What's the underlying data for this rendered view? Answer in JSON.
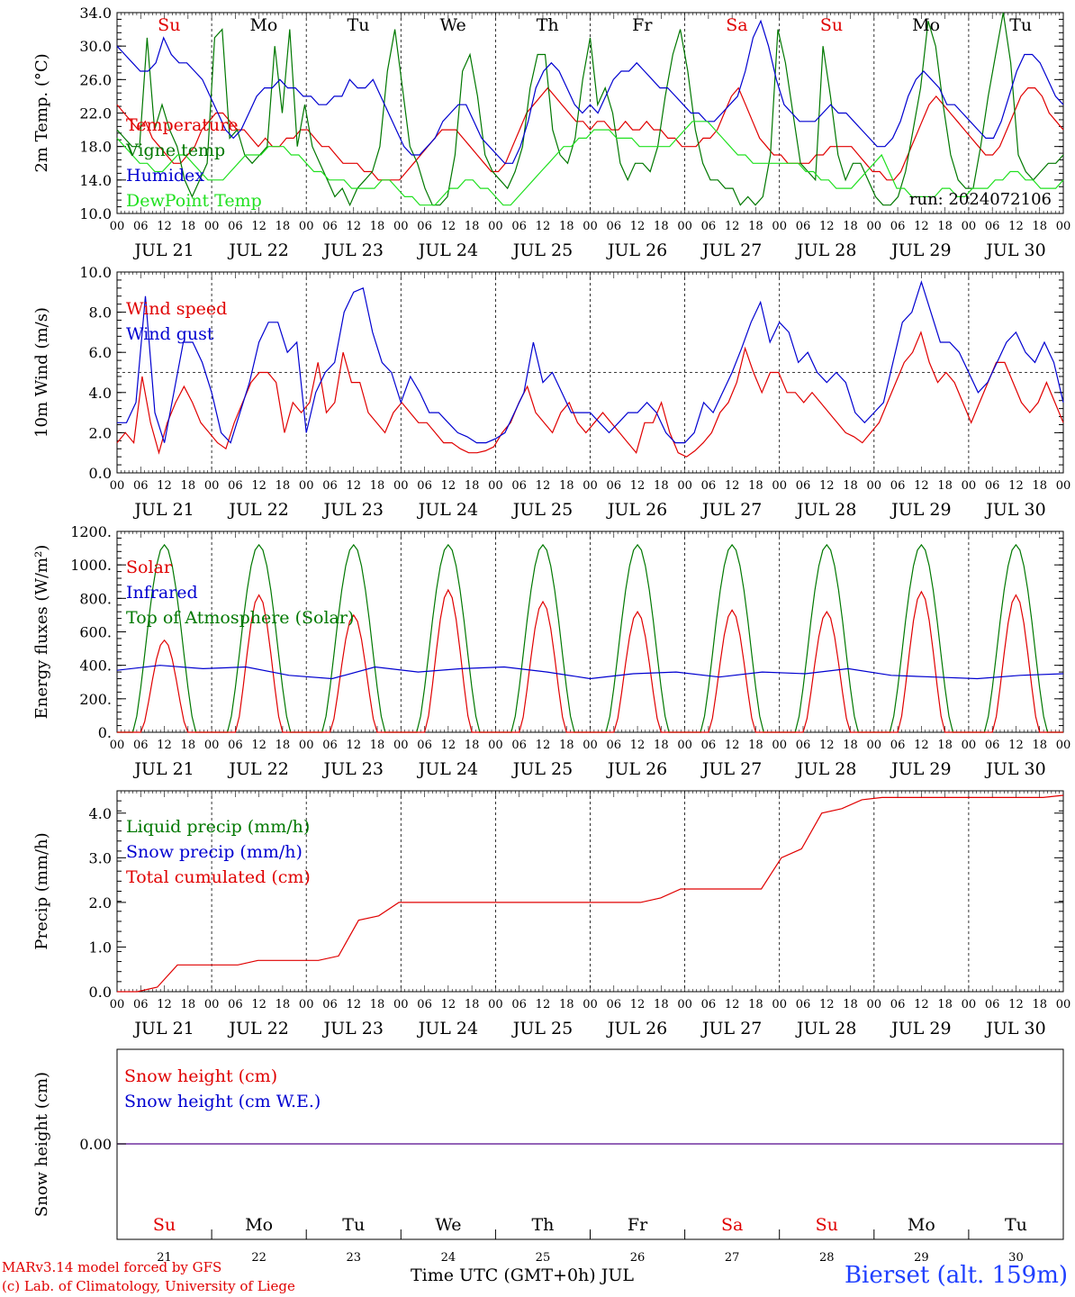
{
  "chart_data": [
    {
      "panel": "temperature",
      "type": "line",
      "ylabel": "2m Temp. (°C)",
      "ylim": [
        10,
        34
      ],
      "yticks": [
        "10.0",
        "14.0",
        "18.0",
        "22.0",
        "26.0",
        "30.0",
        "34.0"
      ],
      "annotation": "run: 2024072106",
      "x_unit": "hours from 2024-07-21 00 UTC (3-hourly)",
      "series": [
        {
          "name": "Temperature",
          "color": "#e00000",
          "values": [
            23,
            22,
            21,
            20,
            21,
            19,
            18,
            17,
            16,
            16,
            17,
            18,
            20,
            21,
            22,
            22,
            21,
            20,
            20,
            19,
            18,
            19,
            18,
            18,
            19,
            19,
            20,
            20,
            19,
            18,
            18,
            17,
            16,
            16,
            16,
            15,
            15,
            14,
            14,
            14,
            14,
            15,
            16,
            17,
            18,
            19,
            20,
            20,
            20,
            19,
            18,
            17,
            16,
            15,
            15,
            16,
            18,
            20,
            22,
            23,
            24,
            25,
            24,
            23,
            22,
            21,
            21,
            20,
            21,
            21,
            20,
            20,
            21,
            20,
            20,
            21,
            20,
            20,
            19,
            19,
            18,
            18,
            18,
            19,
            19,
            20,
            22,
            24,
            25,
            23,
            21,
            19,
            18,
            17,
            17,
            16,
            16,
            16,
            16,
            17,
            17,
            18,
            18,
            18,
            18,
            17,
            16,
            15,
            15,
            14,
            14,
            15,
            17,
            19,
            21,
            23,
            24,
            23,
            22,
            21,
            20,
            19,
            18,
            17,
            17,
            18,
            20,
            22,
            24,
            25,
            25,
            24,
            22,
            21,
            20
          ]
        },
        {
          "name": "Vigne temp",
          "color": "#007800",
          "values": [
            20,
            19,
            18,
            18,
            31,
            20,
            23,
            20,
            18,
            14,
            12,
            14,
            16,
            31,
            32,
            19,
            20,
            17,
            16,
            17,
            18,
            30,
            22,
            32,
            18,
            23,
            18,
            16,
            14,
            12,
            13,
            11,
            13,
            14,
            15,
            18,
            27,
            32,
            25,
            18,
            16,
            13,
            11,
            11,
            12,
            17,
            27,
            29,
            24,
            17,
            15,
            14,
            13,
            15,
            18,
            25,
            29,
            29,
            20,
            17,
            16,
            19,
            26,
            31,
            23,
            25,
            22,
            16,
            14,
            16,
            16,
            15,
            18,
            24,
            29,
            32,
            27,
            20,
            16,
            14,
            14,
            13,
            13,
            11,
            12,
            11,
            12,
            17,
            32,
            28,
            22,
            16,
            15,
            14,
            30,
            24,
            17,
            14,
            16,
            16,
            14,
            12,
            11,
            11,
            12,
            15,
            20,
            25,
            33,
            30,
            23,
            17,
            14,
            13,
            13,
            18,
            24,
            29,
            34,
            28,
            17,
            15,
            14,
            15,
            16,
            16,
            17
          ]
        },
        {
          "name": "Humidex",
          "color": "#0000d0",
          "values": [
            30,
            29,
            28,
            27,
            27,
            28,
            31,
            29,
            28,
            28,
            27,
            26,
            24,
            22,
            20,
            19,
            20,
            22,
            24,
            25,
            25,
            26,
            25,
            25,
            24,
            24,
            23,
            23,
            24,
            24,
            26,
            25,
            25,
            26,
            24,
            22,
            20,
            18,
            17,
            17,
            18,
            19,
            21,
            22,
            23,
            23,
            21,
            19,
            18,
            17,
            16,
            16,
            18,
            21,
            25,
            27,
            28,
            27,
            25,
            23,
            22,
            23,
            22,
            24,
            26,
            27,
            27,
            28,
            27,
            26,
            25,
            25,
            24,
            23,
            22,
            22,
            21,
            21,
            22,
            23,
            24,
            27,
            31,
            33,
            30,
            26,
            23,
            22,
            21,
            21,
            21,
            22,
            23,
            22,
            22,
            21,
            20,
            19,
            18,
            18,
            19,
            21,
            24,
            26,
            27,
            26,
            25,
            23,
            23,
            22,
            21,
            20,
            19,
            19,
            21,
            24,
            27,
            29,
            29,
            28,
            26,
            24,
            23
          ]
        },
        {
          "name": "DewPoint Temp",
          "color": "#20e020",
          "values": [
            19,
            18,
            17,
            16,
            16,
            15,
            15,
            16,
            17,
            17,
            16,
            15,
            14,
            14,
            14,
            15,
            16,
            17,
            17,
            17,
            18,
            18,
            18,
            17,
            17,
            16,
            15,
            15,
            14,
            14,
            14,
            13,
            13,
            13,
            13,
            14,
            14,
            13,
            12,
            12,
            11,
            11,
            11,
            12,
            13,
            13,
            14,
            14,
            13,
            13,
            12,
            11,
            11,
            12,
            13,
            14,
            15,
            16,
            17,
            18,
            18,
            19,
            19,
            20,
            20,
            20,
            19,
            19,
            19,
            18,
            18,
            18,
            18,
            18,
            19,
            20,
            21,
            21,
            21,
            20,
            19,
            18,
            17,
            17,
            16,
            16,
            16,
            16,
            16,
            16,
            16,
            15,
            15,
            14,
            14,
            13,
            13,
            13,
            14,
            15,
            16,
            17,
            15,
            13,
            13,
            12,
            12,
            12,
            12,
            13,
            13,
            12,
            12,
            13,
            13,
            13,
            14,
            14,
            15,
            15,
            14,
            14,
            13,
            13,
            13,
            14
          ]
        }
      ]
    },
    {
      "panel": "wind",
      "type": "line",
      "ylabel": "10m Wind (m/s)",
      "ylim": [
        0,
        10
      ],
      "yticks": [
        "0.0",
        "2.0",
        "4.0",
        "6.0",
        "8.0",
        "10.0"
      ],
      "reference_line": 5,
      "series": [
        {
          "name": "Wind speed",
          "color": "#e00000",
          "values": [
            1.5,
            2,
            1.5,
            4.8,
            2.5,
            1,
            2.5,
            3.5,
            4.3,
            3.5,
            2.5,
            2,
            1.5,
            1.2,
            2.5,
            3.5,
            4.5,
            5,
            5,
            4.5,
            2,
            3.5,
            3,
            3.5,
            5.5,
            3,
            3.5,
            6,
            4.5,
            4.5,
            3,
            2.5,
            2,
            3,
            3.5,
            3,
            2.5,
            2.5,
            2,
            1.5,
            1.5,
            1.2,
            1,
            1,
            1.1,
            1.3,
            2,
            2.5,
            3.5,
            4.3,
            3,
            2.5,
            2,
            3,
            3.5,
            2.5,
            2,
            2.5,
            3,
            2.5,
            2,
            1.5,
            1,
            2.5,
            2.5,
            3.5,
            2,
            1,
            0.8,
            1.1,
            1.5,
            2,
            3,
            3.5,
            4.5,
            6.2,
            5,
            4,
            5,
            5,
            4,
            4,
            3.5,
            4,
            3.5,
            3,
            2.5,
            2,
            1.8,
            1.5,
            2,
            2.5,
            3.5,
            4.5,
            5.5,
            6,
            7,
            5.5,
            4.5,
            5,
            4.5,
            3.5,
            2.5,
            3.5,
            4.5,
            5.5,
            5.5,
            4.5,
            3.5,
            3,
            3.5,
            4.5,
            3.5,
            2.5
          ]
        },
        {
          "name": "Wind gust",
          "color": "#0000d0",
          "values": [
            2.5,
            2.5,
            3.5,
            8.8,
            3,
            1.5,
            4,
            6.5,
            6.5,
            5.5,
            4,
            2,
            1.5,
            3,
            4.5,
            6.5,
            7.5,
            7.5,
            6,
            6.5,
            2,
            4,
            5,
            5.5,
            8,
            9,
            9.2,
            7,
            5.5,
            5,
            3.5,
            4.8,
            4,
            3,
            3,
            2.5,
            2,
            1.8,
            1.5,
            1.5,
            1.7,
            2,
            3,
            4,
            6.5,
            4.5,
            5,
            4,
            3,
            3,
            3,
            2.5,
            2,
            2.5,
            3,
            3,
            3.5,
            3,
            2,
            1.5,
            1.5,
            2,
            3.5,
            3,
            4,
            5,
            6.2,
            7.5,
            8.5,
            6.5,
            7.5,
            7,
            5.5,
            6,
            5,
            4.5,
            5,
            4.5,
            3,
            2.5,
            3,
            3.5,
            5.5,
            7.5,
            8,
            9.5,
            8,
            6.5,
            6.5,
            6,
            5,
            4,
            4.5,
            5.5,
            6.5,
            7,
            6,
            5.5,
            6.5,
            5.5,
            3.5
          ]
        }
      ]
    },
    {
      "panel": "energy",
      "type": "line",
      "ylabel": "Energy fluxes (W/m²)",
      "ylim": [
        0,
        1200
      ],
      "yticks": [
        "0.",
        "200.",
        "400.",
        "600.",
        "800.",
        "1000.",
        "1200."
      ],
      "series": [
        {
          "name": "Solar",
          "color": "#e00000"
        },
        {
          "name": "Infrared",
          "color": "#0000d0"
        },
        {
          "name": "Top of Atmosphere (Solar)",
          "color": "#007800",
          "value": "1120 peak daily"
        }
      ],
      "solar_peaks": [
        550,
        820,
        700,
        850,
        780,
        720,
        730,
        720,
        840,
        820
      ],
      "infrared": [
        370,
        400,
        380,
        390,
        340,
        320,
        390,
        360,
        380,
        390,
        360,
        320,
        350,
        360,
        330,
        360,
        350,
        380,
        340,
        330,
        320,
        340,
        350
      ]
    },
    {
      "panel": "precip",
      "type": "line",
      "ylabel": "Precip (mm/h)",
      "ylim": [
        0,
        4.5
      ],
      "yticks": [
        "0.0",
        "1.0",
        "2.0",
        "3.0",
        "4.0"
      ],
      "series": [
        {
          "name": "Liquid precip (mm/h)",
          "color": "#007800"
        },
        {
          "name": "Snow precip (mm/h)",
          "color": "#0000d0"
        },
        {
          "name": "Total cumulated (cm)",
          "color": "#e00000",
          "values": [
            0,
            0,
            0.1,
            0.6,
            0.6,
            0.6,
            0.6,
            0.7,
            0.7,
            0.7,
            0.7,
            0.8,
            1.6,
            1.7,
            2.0,
            2.0,
            2.0,
            2.0,
            2.0,
            2.0,
            2.0,
            2.0,
            2.0,
            2.0,
            2.0,
            2.0,
            2.0,
            2.1,
            2.3,
            2.3,
            2.3,
            2.3,
            2.3,
            3.0,
            3.2,
            4.0,
            4.1,
            4.3,
            4.35,
            4.35,
            4.35,
            4.35,
            4.35,
            4.35,
            4.35,
            4.35,
            4.35,
            4.4
          ]
        }
      ]
    },
    {
      "panel": "snow",
      "type": "line",
      "ylabel": "Snow height (cm)",
      "yticks": [
        "0.00"
      ],
      "series": [
        {
          "name": "Snow height (cm)",
          "color": "#e00000",
          "values": [
            0
          ]
        },
        {
          "name": "Snow height (cm W.E.)",
          "color": "#0000d0",
          "values": [
            0
          ]
        }
      ]
    }
  ],
  "days": [
    "JUL 21",
    "JUL 22",
    "JUL 23",
    "JUL 24",
    "JUL 25",
    "JUL 26",
    "JUL 27",
    "JUL 28",
    "JUL 29",
    "JUL 30"
  ],
  "weekdays": [
    "Su",
    "Mo",
    "Tu",
    "We",
    "Th",
    "Fr",
    "Sa",
    "Su",
    "Mo",
    "Tu"
  ],
  "weekday_colors": [
    "#e00000",
    "#000000",
    "#000000",
    "#000000",
    "#000000",
    "#000000",
    "#e00000",
    "#e00000",
    "#000000",
    "#000000"
  ],
  "day_numbers": [
    "21",
    "22",
    "23",
    "24",
    "25",
    "26",
    "27",
    "28",
    "29",
    "30"
  ],
  "hour_labels": [
    "00",
    "06",
    "12",
    "18"
  ],
  "footer": {
    "credit1": "MARv3.14 model forced by GFS",
    "credit2": "(c) Lab. of Climatology, University of Liege",
    "xlabel": "Time UTC (GMT+0h) JUL",
    "station": "Bierset (alt. 159m)"
  }
}
